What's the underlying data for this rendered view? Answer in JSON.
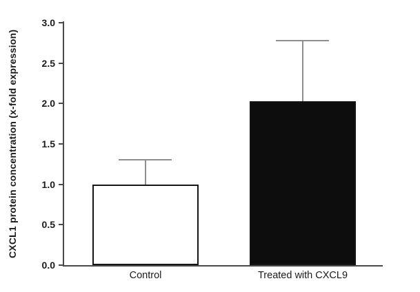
{
  "chart_data": {
    "type": "bar",
    "title": "",
    "ylabel": "CXCL1 protein concentration (x-fold expression)",
    "xlabel": "",
    "categories": [
      "Control",
      "Treated with CXCL9"
    ],
    "values": [
      1.0,
      2.03
    ],
    "error_tops": [
      1.3,
      2.78
    ],
    "ylim": [
      0.0,
      3.0
    ],
    "ytick_labels": [
      "0.0",
      "0.5",
      "1.0",
      "1.5",
      "2.0",
      "2.5",
      "3.0"
    ],
    "grid": false,
    "legend": null,
    "bar_fill_colors": [
      "#ffffff",
      "#0d0d0d"
    ],
    "bar_border_color": "#141414",
    "error_bar_color": "#8e8e8e",
    "axis_color": "#4a4a4a",
    "text_color": "#1a1a1a"
  }
}
